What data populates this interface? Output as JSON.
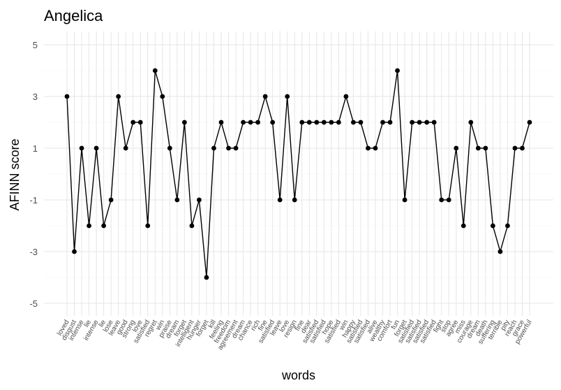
{
  "chart_data": {
    "type": "line",
    "title": "Angelica",
    "xlabel": "words",
    "ylabel": "AFINN score",
    "ylim": [
      -5.5,
      5.5
    ],
    "yticks": [
      -5,
      -3,
      -1,
      1,
      3,
      5
    ],
    "grid": true,
    "categories": [
      "loved",
      "disgust",
      "intense",
      "lie",
      "intense",
      "lie",
      "lose",
      "leave",
      "good",
      "strong",
      "love",
      "satisfied",
      "regret",
      "win",
      "praise",
      "dream",
      "forget",
      "intelligent",
      "hunger",
      "forget",
      "kill",
      "feeling",
      "freedom",
      "agreement",
      "dream",
      "chance",
      "rich",
      "fine",
      "satisfied",
      "leave",
      "love",
      "resign",
      "fine",
      "dear",
      "satisfied",
      "satisfied",
      "hope",
      "satisfied",
      "win",
      "happy",
      "satisfied",
      "satisfied",
      "alive",
      "wealthy",
      "comfort",
      "fun",
      "forget",
      "satisfied",
      "satisfied",
      "satisfied",
      "satisfied",
      "fight",
      "stop",
      "agree",
      "miss",
      "courage",
      "dream",
      "death",
      "suffering",
      "terrible",
      "pity",
      "reach",
      "grace",
      "powerful"
    ],
    "values": [
      3,
      -3,
      1,
      -2,
      1,
      -2,
      -1,
      3,
      1,
      2,
      2,
      -2,
      4,
      3,
      1,
      -1,
      2,
      -2,
      -1,
      -4,
      1,
      2,
      1,
      1,
      2,
      2,
      2,
      3,
      2,
      -1,
      3,
      -1,
      2,
      2,
      2,
      2,
      2,
      2,
      3,
      2,
      2,
      1,
      1,
      2,
      2,
      4,
      -1,
      2,
      2,
      2,
      2,
      -1,
      -1,
      1,
      -2,
      2,
      1,
      1,
      -2,
      -3,
      -2,
      1,
      1,
      2
    ]
  }
}
